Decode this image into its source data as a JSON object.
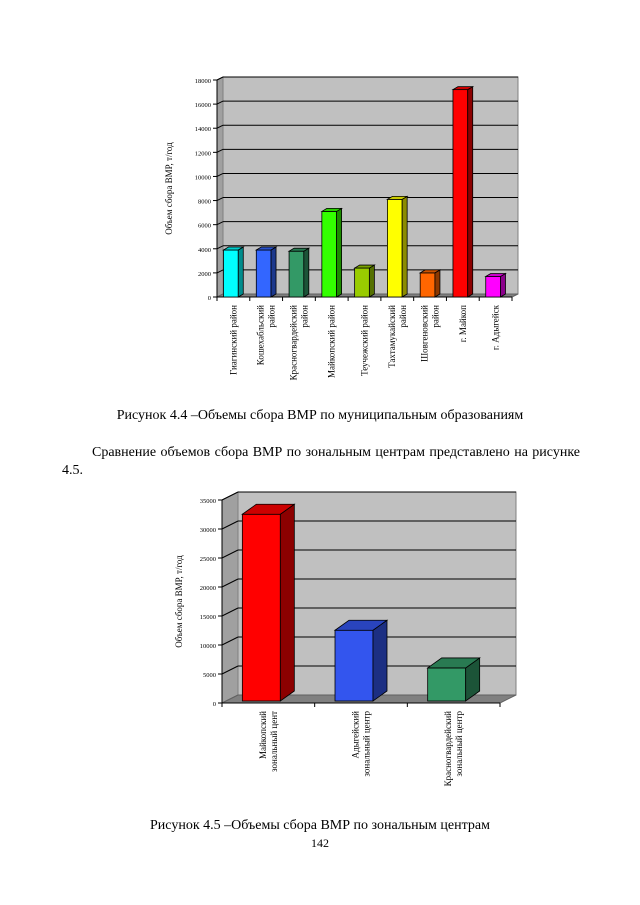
{
  "charts": [
    {
      "type": "bar",
      "ylabel": "Объем сбора ВМР, т/год",
      "ylim": [
        0,
        18000
      ],
      "ytick_labels": [
        "0",
        "2000",
        "4000",
        "6000",
        "8000",
        "10000",
        "12000",
        "14000",
        "16000",
        "18000"
      ],
      "categories": [
        [
          "Гиагинский район"
        ],
        [
          "Кошехабльский",
          "район"
        ],
        [
          "Красногвардейский",
          "район"
        ],
        [
          "Майкопский район"
        ],
        [
          "Теучежский район"
        ],
        [
          "Тахтамукайский",
          "район"
        ],
        [
          "Шовгеновский",
          "район"
        ],
        [
          "г. Майкоп"
        ],
        [
          "г. Адыгейск"
        ]
      ],
      "values": [
        3900,
        3900,
        3800,
        7100,
        2400,
        8100,
        2000,
        17200,
        1700
      ],
      "colors": [
        "#00ffff",
        "#3366ff",
        "#339966",
        "#33ff00",
        "#99cc00",
        "#ffff00",
        "#ff6600",
        "#ff0000",
        "#ff00ff"
      ],
      "grid": true,
      "style": "3d"
    },
    {
      "type": "bar",
      "ylabel": "Объем сбора ВМР, т/год",
      "ylim": [
        0,
        35000
      ],
      "ytick_labels": [
        "0",
        "5000",
        "10000",
        "15000",
        "20000",
        "25000",
        "30000",
        "35000"
      ],
      "categories": [
        [
          "Майкопский",
          "зональный цент"
        ],
        [
          "Адыгейский",
          "зональный центр"
        ],
        [
          "Красногвардейский",
          "зональный центр"
        ]
      ],
      "values": [
        32200,
        12200,
        5700
      ],
      "colors": [
        "#ff0000",
        "#3355ee",
        "#339966"
      ],
      "grid": true,
      "style": "3d"
    }
  ],
  "chart_data": [
    {
      "type": "bar",
      "ylabel": "Объем сбора ВМР, т/год",
      "categories": [
        "Гиагинский район",
        "Кошехабльский район",
        "Красногвардейский район",
        "Майкопский район",
        "Теучежский район",
        "Тахтамукайский район",
        "Шовгеновский район",
        "г. Майкоп",
        "г. Адыгейск"
      ],
      "values": [
        3900,
        3900,
        3800,
        7100,
        2400,
        8100,
        2000,
        17200,
        1700
      ],
      "ylim": [
        0,
        18000
      ]
    },
    {
      "type": "bar",
      "ylabel": "Объем сбора ВМР, т/год",
      "categories": [
        "Майкопский зональный цент",
        "Адыгейский зональный центр",
        "Красногвардейский зональный центр"
      ],
      "values": [
        32200,
        12200,
        5700
      ],
      "ylim": [
        0,
        35000
      ]
    }
  ],
  "text": {
    "caption1": "Рисунок 4.4 –Объемы сбора ВМР по муниципальным образованиям",
    "paragraph": "Сравнение объемов сбора ВМР по зональным центрам представлено на рисунке 4.5.",
    "caption2": "Рисунок 4.5 –Объемы сбора ВМР по зональным центрам",
    "page_number": "142"
  }
}
